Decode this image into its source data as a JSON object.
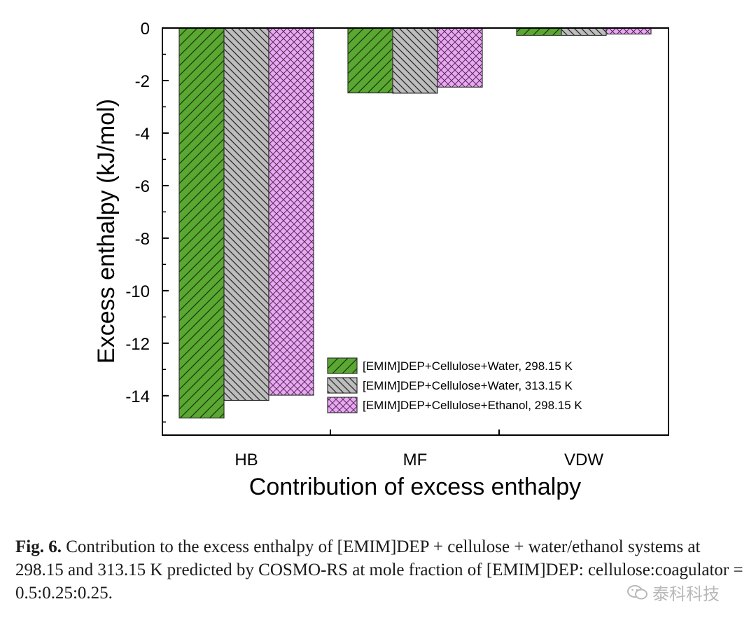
{
  "chart_data": {
    "type": "bar",
    "categories": [
      "HB",
      "MF",
      "VDW"
    ],
    "series": [
      {
        "name": "[EMIM]DEP+Cellulose+Water, 298.15 K",
        "values": [
          -14.85,
          -2.47,
          -0.28
        ],
        "color": "#5aa832",
        "pattern": "forward-diagonal"
      },
      {
        "name": "[EMIM]DEP+Cellulose+Water, 313.15 K",
        "values": [
          -14.18,
          -2.48,
          -0.28
        ],
        "color": "#b8b8b8",
        "pattern": "backward-diagonal"
      },
      {
        "name": "[EMIM]DEP+Cellulose+Ethanol, 298.15 K",
        "values": [
          -13.98,
          -2.25,
          -0.23
        ],
        "color": "#e6a6f0",
        "pattern": "crosshatch"
      }
    ],
    "xlabel": "Contribution of excess enthalpy",
    "ylabel": "Excess enthalpy (kJ/mol)",
    "ylim": [
      -15.5,
      0
    ],
    "yticks": [
      0,
      -2,
      -4,
      -6,
      -8,
      -10,
      -12,
      -14
    ],
    "ytick_labels": [
      "0",
      "-2",
      "-4",
      "-6",
      "-8",
      "-10",
      "-12",
      "-14"
    ],
    "legend_position": "bottom-right",
    "grid": false
  },
  "caption": {
    "fig_label": "Fig. 6.",
    "text": " Contribution to the excess enthalpy of [EMIM]DEP + cellulose + water/ethanol systems at 298.15 and 313.15 K predicted by COSMO-RS at mole fraction of [EMIM]DEP: cellulose:coagulator = 0.5:0.25:0.25."
  },
  "watermark": {
    "text": "泰科科技",
    "icon": "wechat-icon"
  }
}
